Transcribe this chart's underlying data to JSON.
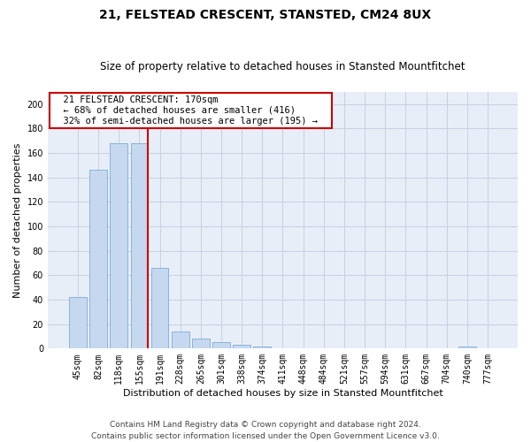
{
  "title": "21, FELSTEAD CRESCENT, STANSTED, CM24 8UX",
  "subtitle": "Size of property relative to detached houses in Stansted Mountfitchet",
  "xlabel": "Distribution of detached houses by size in Stansted Mountfitchet",
  "ylabel": "Number of detached properties",
  "footer_line1": "Contains HM Land Registry data © Crown copyright and database right 2024.",
  "footer_line2": "Contains public sector information licensed under the Open Government Licence v3.0.",
  "annotation_line1": "  21 FELSTEAD CRESCENT: 170sqm  ",
  "annotation_line2": "  ← 68% of detached houses are smaller (416)  ",
  "annotation_line3": "  32% of semi-detached houses are larger (195) →  ",
  "bar_labels": [
    "45sqm",
    "82sqm",
    "118sqm",
    "155sqm",
    "191sqm",
    "228sqm",
    "265sqm",
    "301sqm",
    "338sqm",
    "374sqm",
    "411sqm",
    "448sqm",
    "484sqm",
    "521sqm",
    "557sqm",
    "594sqm",
    "631sqm",
    "667sqm",
    "704sqm",
    "740sqm",
    "777sqm"
  ],
  "bar_values": [
    42,
    146,
    168,
    168,
    66,
    14,
    8,
    5,
    3,
    2,
    0,
    0,
    0,
    0,
    0,
    0,
    0,
    0,
    0,
    2,
    0
  ],
  "bar_color": "#c5d8f0",
  "bar_edgecolor": "#7aadd4",
  "highlight_bar_index": 3,
  "highlight_color": "#cc0000",
  "ylim": [
    0,
    210
  ],
  "yticks": [
    0,
    20,
    40,
    60,
    80,
    100,
    120,
    140,
    160,
    180,
    200
  ],
  "background_color": "#ffffff",
  "axes_facecolor": "#e8eef8",
  "grid_color": "#c8d0e0",
  "title_fontsize": 10,
  "subtitle_fontsize": 8.5,
  "axis_label_fontsize": 8,
  "tick_fontsize": 7,
  "annotation_fontsize": 7.5,
  "footer_fontsize": 6.5
}
